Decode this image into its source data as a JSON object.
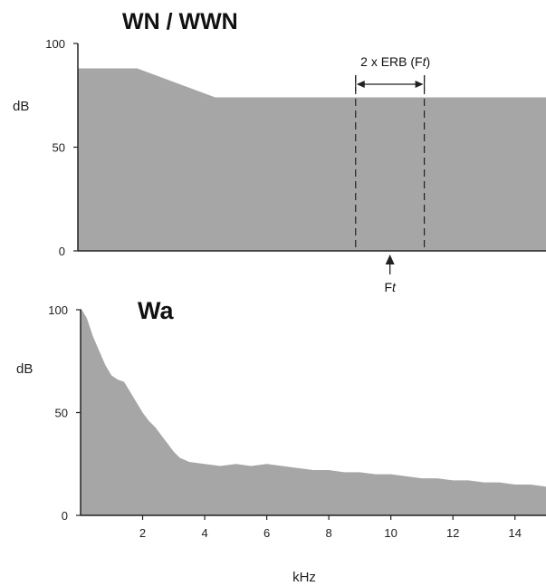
{
  "chart_data": [
    {
      "type": "area",
      "title": "WN / WWN",
      "ylabel": "dB",
      "xlim": [
        0,
        15
      ],
      "ylim": [
        0,
        100
      ],
      "yticks": [
        "0",
        "50",
        "100"
      ],
      "grid": false,
      "x": [
        0,
        1.9,
        4.4,
        15
      ],
      "values": [
        88,
        88,
        74,
        74
      ],
      "annotations": {
        "band_label": "2 x ERB (Ft)",
        "band_label_prefix": "2 x ERB (F",
        "band_label_italic": "t",
        "band_label_suffix": ")",
        "band_x": [
          8.9,
          11.1
        ],
        "marker_label": "Ft",
        "marker_label_main": "F",
        "marker_label_italic": "t",
        "marker_x": 10.0
      }
    },
    {
      "type": "area",
      "title": "Wa",
      "ylabel": "dB",
      "xlabel": "kHz",
      "xlim": [
        0,
        15
      ],
      "ylim": [
        0,
        100
      ],
      "yticks": [
        "0",
        "50",
        "100"
      ],
      "xticks": [
        "2",
        "4",
        "6",
        "8",
        "10",
        "12",
        "14"
      ],
      "grid": false,
      "x": [
        0,
        0.2,
        0.4,
        0.6,
        0.8,
        1.0,
        1.2,
        1.4,
        1.6,
        1.8,
        2.0,
        2.2,
        2.4,
        2.6,
        2.8,
        3.0,
        3.2,
        3.5,
        4.0,
        4.5,
        5.0,
        5.5,
        6.0,
        6.5,
        7.0,
        7.5,
        8.0,
        8.5,
        9.0,
        9.5,
        10.0,
        10.5,
        11.0,
        11.5,
        12.0,
        12.5,
        13.0,
        13.5,
        14.0,
        14.5,
        15.0
      ],
      "values": [
        101,
        96,
        87,
        80,
        73,
        68,
        66,
        65,
        60,
        55,
        50,
        46,
        43,
        39,
        35,
        31,
        28,
        26,
        25,
        24,
        25,
        24,
        25,
        24,
        23,
        22,
        22,
        21,
        21,
        20,
        20,
        19,
        18,
        18,
        17,
        17,
        16,
        16,
        15,
        15,
        14
      ]
    }
  ]
}
